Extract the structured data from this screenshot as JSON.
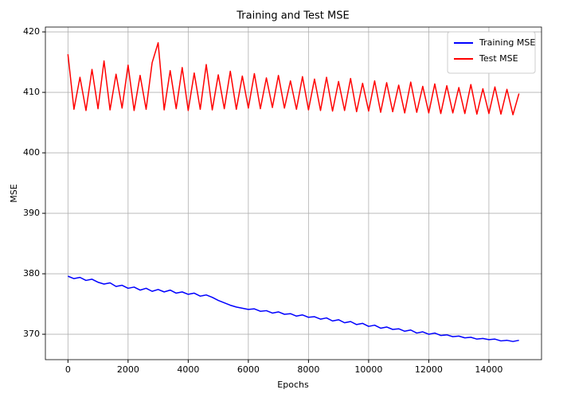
{
  "chart_data": {
    "type": "line",
    "title": "Training and Test MSE",
    "x_label": "Epochs",
    "y_label": "MSE",
    "x": [
      0,
      200,
      400,
      600,
      800,
      1000,
      1200,
      1400,
      1600,
      1800,
      2000,
      2200,
      2400,
      2600,
      2800,
      3000,
      3200,
      3400,
      3600,
      3800,
      4000,
      4200,
      4400,
      4600,
      4800,
      5000,
      5200,
      5400,
      5600,
      5800,
      6000,
      6200,
      6400,
      6600,
      6800,
      7000,
      7200,
      7400,
      7600,
      7800,
      8000,
      8200,
      8400,
      8600,
      8800,
      9000,
      9200,
      9400,
      9600,
      9800,
      10000,
      10200,
      10400,
      10600,
      10800,
      11000,
      11200,
      11400,
      11600,
      11800,
      12000,
      12200,
      12400,
      12600,
      12800,
      13000,
      13200,
      13400,
      13600,
      13800,
      14000,
      14200,
      14400,
      14600,
      14800,
      15000
    ],
    "series": [
      {
        "name": "Training MSE",
        "color": "#0000ff",
        "values": [
          379.6,
          379.2,
          379.4,
          378.9,
          379.1,
          378.6,
          378.3,
          378.5,
          377.9,
          378.1,
          377.6,
          377.8,
          377.3,
          377.6,
          377.1,
          377.4,
          377.0,
          377.3,
          376.8,
          377.0,
          376.6,
          376.8,
          376.3,
          376.5,
          376.1,
          375.6,
          375.2,
          374.8,
          374.5,
          374.3,
          374.1,
          374.2,
          373.8,
          373.9,
          373.5,
          373.7,
          373.3,
          373.4,
          373.0,
          373.2,
          372.8,
          372.9,
          372.5,
          372.7,
          372.2,
          372.4,
          371.9,
          372.1,
          371.6,
          371.8,
          371.3,
          371.5,
          371.0,
          371.2,
          370.8,
          370.9,
          370.5,
          370.7,
          370.2,
          370.4,
          370.0,
          370.2,
          369.8,
          369.9,
          369.6,
          369.7,
          369.4,
          369.5,
          369.2,
          369.3,
          369.1,
          369.2,
          368.9,
          369.0,
          368.8,
          369.0
        ]
      },
      {
        "name": "Test MSE",
        "color": "#ff0000",
        "values": [
          416.3,
          407.2,
          412.5,
          407.0,
          413.8,
          407.3,
          415.2,
          407.1,
          413.0,
          407.4,
          414.5,
          407.0,
          412.8,
          407.2,
          414.9,
          418.2,
          407.1,
          413.6,
          407.3,
          414.1,
          407.0,
          413.2,
          407.2,
          414.6,
          407.1,
          412.9,
          407.3,
          413.5,
          407.2,
          412.7,
          407.4,
          413.1,
          407.3,
          412.4,
          407.5,
          412.8,
          407.4,
          411.9,
          407.2,
          412.6,
          407.1,
          412.2,
          407.0,
          412.5,
          406.9,
          411.8,
          407.0,
          412.3,
          406.8,
          411.5,
          406.9,
          411.9,
          406.7,
          411.6,
          406.8,
          411.2,
          406.6,
          411.7,
          406.7,
          411.0,
          406.6,
          411.4,
          406.5,
          411.1,
          406.6,
          410.8,
          406.5,
          411.3,
          406.4,
          410.6,
          406.5,
          410.9,
          406.4,
          410.5,
          406.3,
          409.8
        ]
      }
    ],
    "xlim": [
      -750,
      15750
    ],
    "ylim": [
      365.8,
      420.8
    ],
    "xticks": [
      0,
      2000,
      4000,
      6000,
      8000,
      10000,
      12000,
      14000
    ],
    "yticks": [
      370,
      380,
      390,
      400,
      410,
      420
    ],
    "grid": true,
    "legend": "upper right"
  }
}
